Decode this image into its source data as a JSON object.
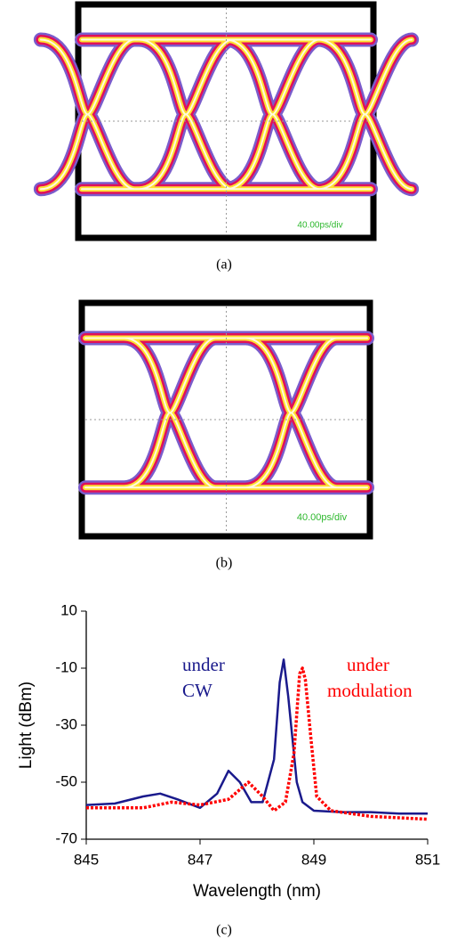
{
  "panels": [
    {
      "scale_label": "40.00ps/div",
      "caption": "(a)"
    },
    {
      "scale_label": "40.00ps/div",
      "caption": "(b)"
    }
  ],
  "chart_data": {
    "type": "line",
    "xlabel": "Wavelength (nm)",
    "ylabel": "Light (dBm)",
    "caption": "(c)",
    "xlim": [
      845,
      851
    ],
    "xticks": [
      845,
      847,
      849,
      851
    ],
    "ylim": [
      -70,
      10
    ],
    "yticks": [
      10,
      -10,
      -30,
      -50,
      -70
    ],
    "annotations": [
      {
        "lines": [
          "under",
          "CW"
        ],
        "color": "#1a1a8c"
      },
      {
        "lines": [
          "under",
          "modulation"
        ],
        "color": "#ff0000"
      }
    ],
    "series": [
      {
        "color": "#1a1a8c",
        "style": "solid",
        "x": [
          845,
          845.5,
          846,
          846.3,
          846.6,
          847,
          847.3,
          847.5,
          847.7,
          847.9,
          848.1,
          848.3,
          848.4,
          848.47,
          848.55,
          848.6,
          848.7,
          848.8,
          849,
          849.5,
          850,
          850.5,
          851
        ],
        "values": [
          -58,
          -57.5,
          -55,
          -54,
          -56,
          -59,
          -54,
          -46,
          -50,
          -57,
          -57,
          -42,
          -15,
          -7,
          -20,
          -30,
          -50,
          -57,
          -60,
          -60.5,
          -60.5,
          -61,
          -61
        ]
      },
      {
        "color": "#ff0000",
        "style": "dotted",
        "x": [
          845,
          846,
          846.5,
          847,
          847.5,
          847.85,
          848.1,
          848.3,
          848.5,
          848.65,
          848.75,
          848.8,
          848.85,
          848.95,
          849.05,
          849.3,
          850,
          851
        ],
        "values": [
          -59,
          -59,
          -57,
          -58,
          -56,
          -50,
          -55,
          -60,
          -57,
          -40,
          -12,
          -10,
          -14,
          -35,
          -55,
          -60,
          -62,
          -63
        ]
      }
    ]
  }
}
